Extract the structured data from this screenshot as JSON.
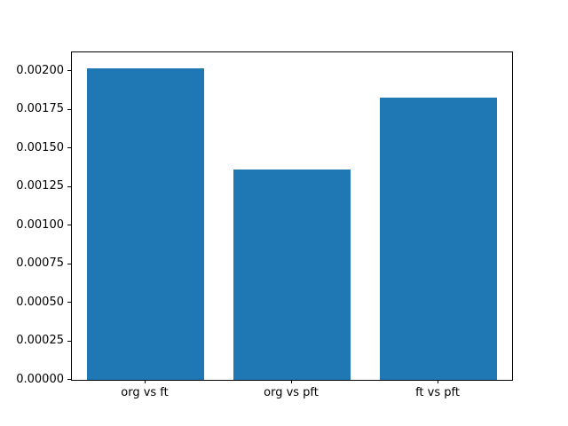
{
  "chart_data": {
    "type": "bar",
    "title": "",
    "xlabel": "",
    "ylabel": "",
    "categories": [
      "org vs ft",
      "org vs pft",
      "ft vs pft"
    ],
    "values": [
      0.00202,
      0.00136,
      0.00183
    ],
    "ylim": [
      0,
      0.002121
    ],
    "ytick_values": [
      0.0,
      0.00025,
      0.0005,
      0.00075,
      0.001,
      0.00125,
      0.0015,
      0.00175,
      0.002
    ],
    "ytick_labels": [
      "0.00000",
      "0.00025",
      "0.00050",
      "0.00075",
      "0.00100",
      "0.00125",
      "0.00150",
      "0.00175",
      "0.00200"
    ],
    "bar_color": "#1f77b4",
    "bar_width_fraction": 0.8,
    "grid": false,
    "legend": null
  }
}
